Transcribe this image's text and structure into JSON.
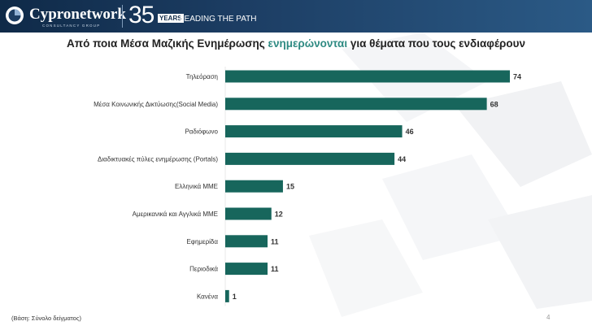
{
  "header": {
    "brand": "Cypronetwork",
    "brand_sub": "CONSULTANCY GROUP",
    "anniversary_number": "35",
    "anniversary_years": "YEARS",
    "tagline": "LEADING THE PATH"
  },
  "title": {
    "before": "Από ποια Μέσα Μαζικής Ενημέρωσης ",
    "highlight": "ενημερώνονται",
    "after": " για θέματα που τους ενδιαφέρουν"
  },
  "footnote": "(Βάση: Σύνολο δείγματος)",
  "page_number": "4",
  "colors": {
    "bar": "#17665c",
    "title_highlight": "#2e8a82",
    "header": "#1c3d63"
  },
  "chart_data": {
    "type": "bar",
    "orientation": "horizontal",
    "categories": [
      "Τηλεόραση",
      "Μέσα Κοινωνικής Δικτύωσης(Social Media)",
      "Ραδιόφωνο",
      "Διαδικτυακές πύλες ενημέρωσης (Portals)",
      "Ελληνικά ΜΜΕ",
      "Αμερικανικά και Αγγλικά ΜΜΕ",
      "Εφημερίδα",
      "Περιοδικά",
      "Κανένα"
    ],
    "values": [
      74,
      68,
      46,
      44,
      15,
      12,
      11,
      11,
      1
    ],
    "data_labels": [
      "74",
      "68",
      "46",
      "44",
      "15",
      "12",
      "11",
      "11",
      "1"
    ],
    "xlim": [
      0,
      80
    ],
    "grid": false,
    "legend": "none"
  }
}
